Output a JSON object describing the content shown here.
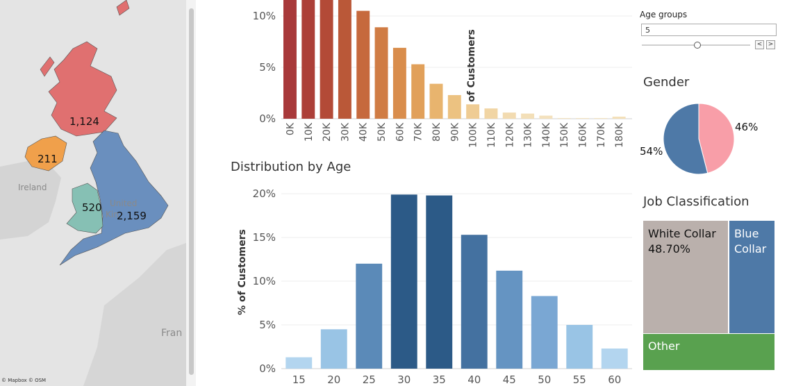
{
  "map": {
    "regions": [
      {
        "name": "Scotland",
        "value": "1,124",
        "color": "#e07070"
      },
      {
        "name": "Northern Ireland",
        "value": "211",
        "color": "#f0a04b"
      },
      {
        "name": "Wales",
        "value": "520",
        "color": "#86c0b4"
      },
      {
        "name": "England",
        "value": "2,159",
        "color": "#6a8fbe"
      }
    ],
    "labels": {
      "ireland": "Ireland",
      "uk_1": "United",
      "uk_2": "Kin",
      "france": "Fran"
    },
    "attribution": "© Mapbox © OSM"
  },
  "income_chart": {
    "ylabel": "% of Customers",
    "yticks": [
      "10%",
      "5%",
      "0%"
    ]
  },
  "age_chart": {
    "title": "Distribution by Age",
    "ylabel": "% of Customers",
    "yticks": [
      "20%",
      "15%",
      "10%",
      "5%",
      "0%"
    ]
  },
  "controls": {
    "age_groups_label": "Age groups",
    "age_groups_value": "5",
    "prev": "<",
    "next": ">"
  },
  "gender": {
    "title": "Gender",
    "slices": [
      {
        "label": "46%",
        "value": 46,
        "color": "#f89ea8"
      },
      {
        "label": "54%",
        "value": 54,
        "color": "#4e79a7"
      }
    ]
  },
  "job": {
    "title": "Job Classification",
    "items": [
      {
        "name": "White Collar",
        "value_label": "48.70%",
        "color": "#bab0ac"
      },
      {
        "name_1": "Blue",
        "name_2": "Collar",
        "color": "#4e79a7"
      },
      {
        "name": "Other",
        "color": "#59a14f"
      }
    ]
  },
  "chart_data": [
    {
      "type": "bar",
      "title": "",
      "xlabel": "",
      "ylabel": "% of Customers",
      "categories": [
        "0K",
        "10K",
        "20K",
        "30K",
        "40K",
        "50K",
        "60K",
        "70K",
        "80K",
        "90K",
        "100K",
        "110K",
        "120K",
        "130K",
        "140K",
        "150K",
        "160K",
        "170K",
        "180K"
      ],
      "values": [
        12.5,
        12.5,
        12.5,
        12.5,
        10.5,
        8.9,
        6.9,
        5.3,
        3.4,
        2.3,
        1.4,
        1.0,
        0.6,
        0.5,
        0.3,
        0.05,
        0.05,
        0.05,
        0.2
      ],
      "colors": [
        "#a8393a",
        "#ac3f38",
        "#b34a37",
        "#ba5838",
        "#c6693d",
        "#d07c44",
        "#d98d4c",
        "#e1a05a",
        "#e8b46e",
        "#ecc281",
        "#efcc94",
        "#f1d5a4",
        "#f2dbb1",
        "#f3dfb8",
        "#f4e1bd",
        "#f5e4c2",
        "#f5e4c2",
        "#f5e4c2",
        "#f4e0b8"
      ],
      "ylim": [
        0,
        12.5
      ],
      "yticks": [
        0,
        5,
        10
      ],
      "grid": true
    },
    {
      "type": "bar",
      "title": "Distribution by Age",
      "xlabel": "",
      "ylabel": "% of Customers",
      "categories": [
        "15",
        "20",
        "25",
        "30",
        "35",
        "40",
        "45",
        "50",
        "55",
        "60"
      ],
      "values": [
        1.3,
        4.5,
        12.0,
        19.9,
        19.8,
        15.3,
        11.2,
        8.3,
        5.0,
        2.3
      ],
      "colors": [
        "#b3d5ef",
        "#99c4e5",
        "#5b8ab8",
        "#2c5a87",
        "#2c5a87",
        "#4471a0",
        "#6594c2",
        "#7aa7d3",
        "#99c4e5",
        "#b3d5ef"
      ],
      "ylim": [
        0,
        20
      ],
      "yticks": [
        0,
        5,
        10,
        15,
        20
      ],
      "grid": true
    },
    {
      "type": "pie",
      "title": "Gender",
      "categories": [
        "46%",
        "54%"
      ],
      "values": [
        46,
        54
      ]
    }
  ]
}
